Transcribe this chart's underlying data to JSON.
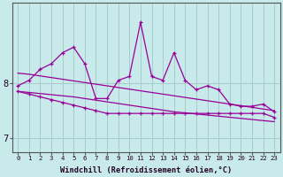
{
  "x": [
    0,
    1,
    2,
    3,
    4,
    5,
    6,
    7,
    8,
    9,
    10,
    11,
    12,
    13,
    14,
    15,
    16,
    17,
    18,
    19,
    20,
    21,
    22,
    23
  ],
  "y_main": [
    7.95,
    8.05,
    8.25,
    8.35,
    8.55,
    8.65,
    8.35,
    7.72,
    7.72,
    8.05,
    8.12,
    9.1,
    8.12,
    8.05,
    8.55,
    8.05,
    7.88,
    7.95,
    7.88,
    7.62,
    7.58,
    7.58,
    7.62,
    7.48
  ],
  "y_low": [
    7.85,
    7.8,
    7.75,
    7.7,
    7.65,
    7.6,
    7.55,
    7.5,
    7.45,
    7.45,
    7.45,
    7.45,
    7.45,
    7.45,
    7.45,
    7.45,
    7.45,
    7.45,
    7.45,
    7.45,
    7.45,
    7.45,
    7.45,
    7.38
  ],
  "y_trend1": [
    8.18,
    8.16,
    8.13,
    8.1,
    8.07,
    8.04,
    8.01,
    7.98,
    7.95,
    7.92,
    7.89,
    7.86,
    7.83,
    7.8,
    7.77,
    7.74,
    7.71,
    7.68,
    7.65,
    7.62,
    7.59,
    7.56,
    7.53,
    7.5
  ],
  "y_trend2": [
    7.85,
    7.83,
    7.81,
    7.79,
    7.77,
    7.75,
    7.72,
    7.69,
    7.66,
    7.63,
    7.6,
    7.57,
    7.54,
    7.51,
    7.48,
    7.46,
    7.44,
    7.42,
    7.4,
    7.38,
    7.36,
    7.34,
    7.32,
    7.3
  ],
  "line_color": "#990099",
  "bg_color": "#c8eaea",
  "grid_color": "#a8cccc",
  "axis_color": "#555555",
  "ylabel_ticks": [
    7,
    8
  ],
  "xlim": [
    -0.5,
    23.5
  ],
  "ylim": [
    6.75,
    9.45
  ],
  "xlabel": "Windchill (Refroidissement éolien,°C)",
  "xtick_labels": [
    "0",
    "1",
    "2",
    "3",
    "4",
    "5",
    "6",
    "7",
    "8",
    "9",
    "10",
    "11",
    "12",
    "13",
    "14",
    "15",
    "16",
    "17",
    "18",
    "19",
    "20",
    "21",
    "22",
    "23"
  ]
}
